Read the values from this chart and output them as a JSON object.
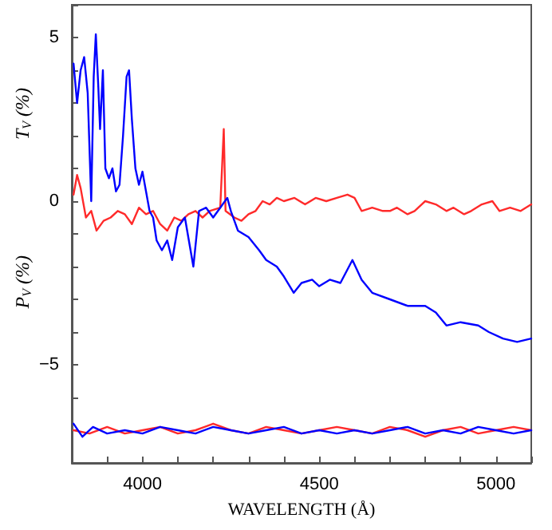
{
  "chart_data": {
    "type": "line",
    "xlabel": "WAVELENGTH (Å)",
    "ylabel": "P$_{V}$ (%)",
    "annotations": [
      "T$_{V}$ (%)"
    ],
    "xlim": [
      3800,
      5100
    ],
    "xticks": [
      {
        "value": 3800,
        "label": null
      },
      {
        "value": 3900,
        "label": null
      },
      4000,
      {
        "value": 4100,
        "label": null
      },
      {
        "value": 4200,
        "label": null
      },
      {
        "value": 4300,
        "label": null
      },
      {
        "value": 4400,
        "label": null
      },
      4500,
      {
        "value": 4600,
        "label": null
      },
      {
        "value": 4700,
        "label": null
      },
      {
        "value": 4800,
        "label": null
      },
      {
        "value": 4900,
        "label": null
      },
      5000,
      {
        "value": 5100,
        "label": null
      }
    ],
    "ylim": [
      -8,
      6
    ],
    "yticks": [
      {
        "value": -8,
        "label": null
      },
      {
        "value": -7,
        "label": null
      },
      {
        "value": -6,
        "label": null
      },
      -5,
      {
        "value": -4,
        "label": null
      },
      {
        "value": -3,
        "label": null
      },
      {
        "value": -2,
        "label": null
      },
      {
        "value": -1,
        "label": null
      },
      0,
      {
        "value": 1,
        "label": null
      },
      {
        "value": 2,
        "label": null
      },
      {
        "value": 3,
        "label": null
      },
      {
        "value": 4,
        "label": null
      },
      5,
      {
        "value": 6,
        "label": null
      }
    ],
    "grid": false,
    "marker": "none",
    "line_style": "solid",
    "series": [
      {
        "color": "#ff2a2a",
        "x": [
          3805,
          3815,
          3825,
          3840,
          3855,
          3870,
          3890,
          3910,
          3930,
          3950,
          3970,
          3990,
          4010,
          4030,
          4050,
          4070,
          4090,
          4110,
          4130,
          4150,
          4170,
          4190,
          4220,
          4230,
          4235,
          4260,
          4280,
          4300,
          4320,
          4340,
          4360,
          4380,
          4400,
          4430,
          4460,
          4490,
          4520,
          4550,
          4580,
          4600,
          4620,
          4650,
          4680,
          4700,
          4720,
          4750,
          4770,
          4800,
          4830,
          4860,
          4880,
          4910,
          4930,
          4960,
          4990,
          5010,
          5040,
          5070,
          5100
        ],
        "values": [
          0.2,
          0.8,
          0.4,
          -0.5,
          -0.3,
          -0.9,
          -0.6,
          -0.5,
          -0.3,
          -0.4,
          -0.7,
          -0.2,
          -0.4,
          -0.3,
          -0.7,
          -0.9,
          -0.5,
          -0.6,
          -0.4,
          -0.3,
          -0.5,
          -0.3,
          -0.2,
          2.2,
          -0.3,
          -0.5,
          -0.6,
          -0.4,
          -0.3,
          0.0,
          -0.1,
          0.1,
          0.0,
          0.1,
          -0.1,
          0.1,
          0.0,
          0.1,
          0.2,
          0.1,
          -0.3,
          -0.2,
          -0.3,
          -0.3,
          -0.2,
          -0.4,
          -0.3,
          0.0,
          -0.1,
          -0.3,
          -0.2,
          -0.4,
          -0.3,
          -0.1,
          0.0,
          -0.3,
          -0.2,
          -0.3,
          -0.1
        ]
      },
      {
        "color": "#0000ff",
        "x": [
          3805,
          3815,
          3825,
          3835,
          3845,
          3855,
          3862,
          3868,
          3875,
          3880,
          3888,
          3895,
          3905,
          3915,
          3925,
          3935,
          3945,
          3955,
          3962,
          3970,
          3980,
          3990,
          4000,
          4010,
          4020,
          4030,
          4040,
          4055,
          4070,
          4084,
          4100,
          4120,
          4144,
          4160,
          4180,
          4200,
          4220,
          4240,
          4250,
          4270,
          4300,
          4330,
          4350,
          4380,
          4400,
          4428,
          4450,
          4480,
          4500,
          4530,
          4560,
          4594,
          4620,
          4650,
          4700,
          4750,
          4800,
          4830,
          4860,
          4900,
          4950,
          4980,
          5020,
          5060,
          5100
        ],
        "values": [
          4.2,
          3.0,
          4.0,
          4.4,
          3.3,
          0.0,
          3.8,
          5.1,
          3.5,
          2.2,
          4.0,
          1.0,
          0.7,
          1.0,
          0.3,
          0.5,
          2.0,
          3.8,
          4.0,
          2.5,
          1.0,
          0.5,
          0.9,
          0.3,
          -0.3,
          -0.5,
          -1.2,
          -1.5,
          -1.2,
          -1.8,
          -0.8,
          -0.5,
          -2.0,
          -0.3,
          -0.2,
          -0.5,
          -0.2,
          0.1,
          -0.3,
          -0.9,
          -1.1,
          -1.5,
          -1.8,
          -2.0,
          -2.3,
          -2.8,
          -2.5,
          -2.4,
          -2.6,
          -2.4,
          -2.5,
          -1.8,
          -2.4,
          -2.8,
          -3.0,
          -3.2,
          -3.2,
          -3.4,
          -3.8,
          -3.7,
          -3.8,
          -4.0,
          -4.2,
          -4.3,
          -4.2
        ]
      },
      {
        "color": "#ff2a2a",
        "x": [
          3805,
          3850,
          3900,
          3950,
          4000,
          4050,
          4100,
          4150,
          4200,
          4250,
          4300,
          4350,
          4400,
          4450,
          4500,
          4550,
          4600,
          4650,
          4700,
          4750,
          4800,
          4850,
          4900,
          4950,
          5000,
          5050,
          5100
        ],
        "values": [
          -7.0,
          -7.1,
          -6.9,
          -7.1,
          -7.0,
          -6.9,
          -7.1,
          -7.0,
          -6.8,
          -7.0,
          -7.1,
          -6.9,
          -7.0,
          -7.1,
          -7.0,
          -6.9,
          -7.0,
          -7.1,
          -6.9,
          -7.0,
          -7.2,
          -7.0,
          -6.9,
          -7.1,
          -7.0,
          -6.9,
          -7.0
        ]
      },
      {
        "color": "#0000ff",
        "x": [
          3805,
          3830,
          3860,
          3900,
          3950,
          4000,
          4050,
          4100,
          4150,
          4200,
          4250,
          4300,
          4350,
          4400,
          4450,
          4500,
          4550,
          4600,
          4650,
          4700,
          4750,
          4800,
          4850,
          4900,
          4950,
          5000,
          5050,
          5100
        ],
        "values": [
          -6.8,
          -7.2,
          -6.9,
          -7.1,
          -7.0,
          -7.1,
          -6.9,
          -7.0,
          -7.1,
          -6.9,
          -7.0,
          -7.1,
          -7.0,
          -6.9,
          -7.1,
          -7.0,
          -7.1,
          -7.0,
          -7.1,
          -7.0,
          -6.9,
          -7.1,
          -7.0,
          -7.1,
          -6.9,
          -7.0,
          -7.1,
          -7.0
        ]
      }
    ]
  }
}
